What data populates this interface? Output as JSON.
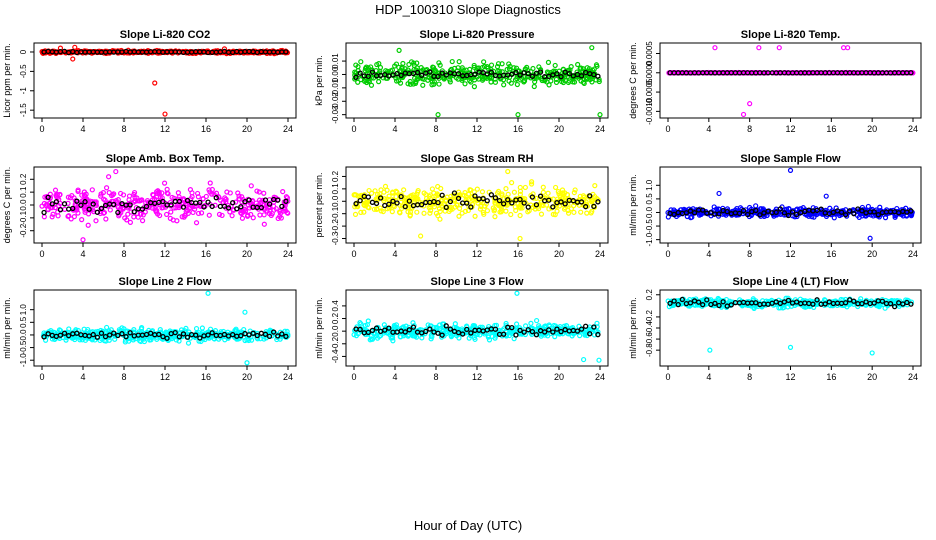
{
  "title": "HDP_100310  Slope Diagnostics",
  "xlabel": "Hour of Day (UTC)",
  "chart_data": [
    {
      "type": "scatter",
      "title": "Slope Li-820 CO2",
      "ylabel": "Licor ppm per min.",
      "color": "#ff0000",
      "xlim": [
        0,
        24
      ],
      "xticks": [
        0,
        4,
        8,
        12,
        16,
        20,
        24
      ],
      "ylim": [
        -1.65,
        0.18
      ],
      "yticks": [
        0,
        -0.5,
        -1,
        -1.5
      ],
      "ytick_labels": [
        "0",
        "-0.5",
        "-1",
        "-1.5"
      ],
      "spread": 0.03,
      "mean_spread": 0.012,
      "outliers": [
        [
          1.8,
          0.1
        ],
        [
          3.0,
          -0.18
        ],
        [
          3.2,
          0.12
        ],
        [
          11.0,
          -0.8
        ],
        [
          12.0,
          -1.6
        ],
        [
          17.8,
          0.08
        ]
      ]
    },
    {
      "type": "scatter",
      "title": "Slope Li-820 Pressure",
      "ylabel": "kPa per min.",
      "color": "#00cc00",
      "xlim": [
        0,
        24
      ],
      "xticks": [
        0,
        4,
        8,
        12,
        16,
        20,
        24
      ],
      "ylim": [
        -0.031,
        0.022
      ],
      "yticks": [
        0.01,
        0,
        -0.01,
        -0.02,
        -0.03
      ],
      "ytick_labels": [
        "0.01",
        "0.00",
        "-0.01",
        "-0.02",
        "-0.03"
      ],
      "spread": 0.007,
      "mean_spread": 0.002,
      "outliers": [
        [
          8.2,
          -0.03
        ],
        [
          16.0,
          -0.03
        ],
        [
          24.0,
          -0.03
        ],
        [
          4.4,
          0.018
        ],
        [
          23.2,
          0.02
        ]
      ]
    },
    {
      "type": "scatter",
      "title": "Slope Li-820 Temp.",
      "ylabel": "degrees C per min.",
      "color": "#ff00ff",
      "xlim": [
        0,
        24
      ],
      "xticks": [
        0,
        4,
        8,
        12,
        16,
        20,
        24
      ],
      "ylim": [
        -0.00112,
        0.00072
      ],
      "yticks": [
        0.0005,
        0,
        -0.0005,
        -0.001
      ],
      "ytick_labels": [
        "0.0005",
        "0.0000",
        "-0.0005",
        "-0.0010"
      ],
      "spread": 5e-06,
      "mean_spread": 2e-06,
      "outliers": [
        [
          4.6,
          0.00065
        ],
        [
          8.9,
          0.00065
        ],
        [
          10.9,
          0.00065
        ],
        [
          17.2,
          0.00065
        ],
        [
          17.6,
          0.00065
        ],
        [
          8.0,
          -0.0008
        ],
        [
          7.4,
          -0.00108
        ]
      ]
    },
    {
      "type": "scatter",
      "title": "Slope Amb. Box Temp.",
      "ylabel": "degrees C per min.",
      "color": "#ff00ff",
      "xlim": [
        0,
        24
      ],
      "xticks": [
        0,
        4,
        8,
        12,
        16,
        20,
        24
      ],
      "ylim": [
        -0.28,
        0.28
      ],
      "yticks": [
        0.2,
        0.1,
        0,
        -0.1,
        -0.2
      ],
      "ytick_labels": [
        "0.2",
        "0.1",
        "0.0",
        "-0.1",
        "-0.2"
      ],
      "spread": 0.11,
      "mean_spread": 0.05,
      "outliers": [
        [
          7.2,
          0.26
        ],
        [
          4.0,
          -0.27
        ],
        [
          6.5,
          0.22
        ]
      ]
    },
    {
      "type": "scatter",
      "title": "Slope Gas Stream RH",
      "ylabel": "percent per min.",
      "color": "#ffff00",
      "xlim": [
        0,
        24
      ],
      "xticks": [
        0,
        4,
        8,
        12,
        16,
        20,
        24
      ],
      "ylim": [
        -0.32,
        0.26
      ],
      "yticks": [
        0.2,
        0.1,
        0,
        -0.1,
        -0.2,
        -0.3
      ],
      "ytick_labels": [
        "0.2",
        "0.1",
        "0.0",
        "-0.1",
        "-0.2",
        "-0.3"
      ],
      "spread": 0.1,
      "mean_spread": 0.05,
      "outliers": [
        [
          15.0,
          0.24
        ],
        [
          16.2,
          -0.3
        ],
        [
          6.5,
          -0.28
        ]
      ]
    },
    {
      "type": "scatter",
      "title": "Slope Sample Flow",
      "ylabel": "ml/min per min.",
      "color": "#0000ff",
      "xlim": [
        0,
        24
      ],
      "xticks": [
        0,
        4,
        8,
        12,
        16,
        20,
        24
      ],
      "ylim": [
        -1.05,
        1.6
      ],
      "yticks": [
        1,
        0.5,
        0,
        -0.5,
        -1
      ],
      "ytick_labels": [
        "1.0",
        "0.5",
        "0.0",
        "-0.5",
        "-1.0"
      ],
      "spread": 0.15,
      "mean_spread": 0.08,
      "outliers": [
        [
          12.0,
          1.55
        ],
        [
          19.8,
          -0.95
        ],
        [
          5.0,
          0.7
        ],
        [
          15.5,
          0.6
        ]
      ]
    },
    {
      "type": "scatter",
      "title": "Slope Line 2 Flow",
      "ylabel": "ml/min per min.",
      "color": "#00ffff",
      "xlim": [
        0,
        24
      ],
      "xticks": [
        0,
        4,
        8,
        12,
        16,
        20,
        24
      ],
      "ylim": [
        -1.15,
        1.7
      ],
      "yticks": [
        1,
        0.5,
        0,
        -0.5,
        -1
      ],
      "ytick_labels": [
        "1.0",
        "0.5",
        "0.0",
        "-0.5",
        "-1.0"
      ],
      "spread": 0.22,
      "mean_spread": 0.1,
      "outliers": [
        [
          16.2,
          1.65
        ],
        [
          20.0,
          -1.1
        ],
        [
          19.8,
          0.9
        ]
      ]
    },
    {
      "type": "scatter",
      "title": "Slope Line 3 Flow",
      "ylabel": "ml/min per min.",
      "color": "#00ffff",
      "xlim": [
        0,
        24
      ],
      "xticks": [
        0,
        4,
        8,
        12,
        16,
        20,
        24
      ],
      "ylim": [
        -0.52,
        0.62
      ],
      "yticks": [
        0.4,
        0.2,
        0,
        -0.2,
        -0.4
      ],
      "ytick_labels": [
        "0.4",
        "0.2",
        "0.0",
        "-0.2",
        "-0.4"
      ],
      "spread": 0.1,
      "mean_spread": 0.06,
      "outliers": [
        [
          15.9,
          0.6
        ],
        [
          22.4,
          -0.45
        ],
        [
          23.9,
          -0.46
        ]
      ]
    },
    {
      "type": "scatter",
      "title": "Slope Line 4 (LT) Flow",
      "ylabel": "ml/min per min.",
      "color": "#00ffff",
      "xlim": [
        0,
        24
      ],
      "xticks": [
        0,
        4,
        8,
        12,
        16,
        20,
        24
      ],
      "ylim": [
        -1.05,
        0.25
      ],
      "yticks": [
        0.2,
        -0.2,
        -0.4,
        -0.6,
        -0.8
      ],
      "ytick_labels": [
        "0.2",
        "-0.2",
        "-0.4",
        "-0.6",
        "-0.8"
      ],
      "spread": 0.07,
      "mean_spread": 0.04,
      "center": 0.05,
      "outliers": [
        [
          4.1,
          -0.8
        ],
        [
          12.0,
          -0.75
        ],
        [
          20.0,
          -0.85
        ]
      ]
    }
  ]
}
